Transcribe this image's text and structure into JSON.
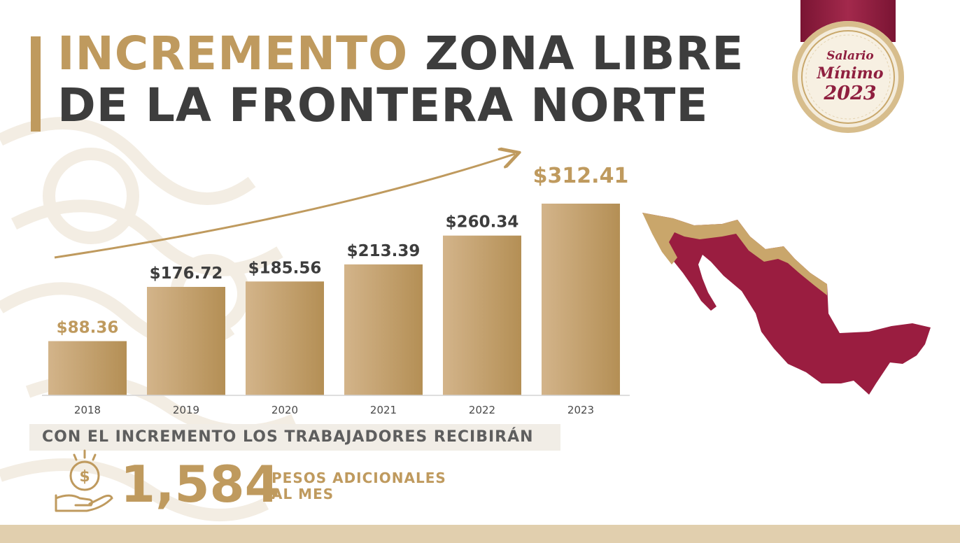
{
  "colors": {
    "gold": "#bf9a5e",
    "bar_light": "#d3b48a",
    "bar_dark": "#b48f55",
    "dark_text": "#3d3d3d",
    "maroon": "#9a1d40",
    "band_beige": "#e1cfae"
  },
  "title": {
    "highlight": "INCREMENTO",
    "rest_line1": "ZONA LIBRE",
    "line2": "DE LA FRONTERA NORTE"
  },
  "badge": {
    "line1": "Salario",
    "line2": "Mínimo",
    "line3": "2023"
  },
  "chart_data": {
    "type": "bar",
    "categories": [
      "2018",
      "2019",
      "2020",
      "2021",
      "2022",
      "2023"
    ],
    "values": [
      88.36,
      176.72,
      185.56,
      213.39,
      260.34,
      312.41
    ],
    "data_labels": [
      "$88.36",
      "$176.72",
      "$185.56",
      "$213.39",
      "$260.34",
      "$312.41"
    ],
    "highlighted_labels": [
      "2018",
      "2023"
    ],
    "title": "",
    "xlabel": "",
    "ylabel": "",
    "ylim": [
      0,
      312.41
    ],
    "grid": false,
    "trend_arrow": true
  },
  "subtitle": "CON EL INCREMENTO LOS TRABAJADORES RECIBIRÁN",
  "highlight": {
    "number": "1,584",
    "line1": "PESOS ADICIONALES",
    "line2": "AL MES"
  },
  "icons": {
    "money": "coin-in-hand-icon",
    "map": "mexico-map"
  }
}
